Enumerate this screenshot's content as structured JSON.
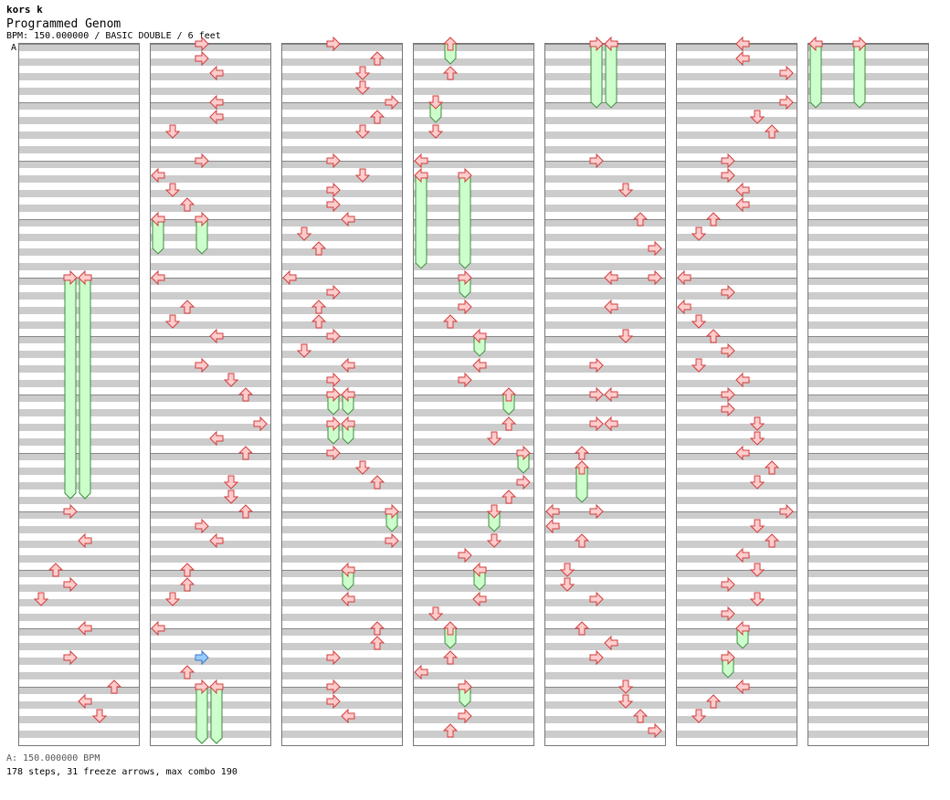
{
  "header": {
    "artist": "kors k",
    "song": "Programmed Genom",
    "meta": "BPM: 150.000000 / BASIC DOUBLE / 6 feet",
    "bpm_marker": "A"
  },
  "footer": {
    "bpm": "A: 150.000000 BPM",
    "stats": "178 steps, 31 freeze arrows, max combo 190"
  },
  "colors": {
    "grey_band": "#cccccc",
    "note_fill": "#ffcccc",
    "note_stroke": "#d23c3c",
    "freeze_fill": "#ccffcc",
    "freeze_stroke": "#3c8c3c",
    "shock_fill": "#99ccff",
    "shock_stroke": "#3c78c8",
    "bpm_line": "#3c8cdc"
  },
  "chart_data": {
    "type": "step-chart",
    "columns": 7,
    "measures_per_column": 12,
    "lanes": 8,
    "notes": [
      {
        "c": 0,
        "m": 4,
        "p": 0.0,
        "l": 3
      },
      {
        "c": 0,
        "m": 4,
        "p": 0.0,
        "l": 4
      },
      {
        "c": 0,
        "m": 8,
        "p": 0.0,
        "l": 3
      },
      {
        "c": 0,
        "m": 8,
        "p": 0.5,
        "l": 4
      },
      {
        "c": 0,
        "m": 9,
        "p": 0.0,
        "l": 2
      },
      {
        "c": 0,
        "m": 9,
        "p": 0.25,
        "l": 3
      },
      {
        "c": 0,
        "m": 9,
        "p": 0.5,
        "l": 1
      },
      {
        "c": 0,
        "m": 10,
        "p": 0.0,
        "l": 4
      },
      {
        "c": 0,
        "m": 10,
        "p": 0.5,
        "l": 3
      },
      {
        "c": 0,
        "m": 11,
        "p": 0.0,
        "l": 6
      },
      {
        "c": 0,
        "m": 11,
        "p": 0.25,
        "l": 4
      },
      {
        "c": 0,
        "m": 11,
        "p": 0.5,
        "l": 5
      },
      {
        "c": 1,
        "m": 0,
        "p": 0.0,
        "l": 3
      },
      {
        "c": 1,
        "m": 0,
        "p": 0.25,
        "l": 3
      },
      {
        "c": 1,
        "m": 0,
        "p": 0.5,
        "l": 4
      },
      {
        "c": 1,
        "m": 1,
        "p": 0.0,
        "l": 4
      },
      {
        "c": 1,
        "m": 1,
        "p": 0.25,
        "l": 4
      },
      {
        "c": 1,
        "m": 1,
        "p": 0.5,
        "l": 1
      },
      {
        "c": 1,
        "m": 2,
        "p": 0.0,
        "l": 3
      },
      {
        "c": 1,
        "m": 2,
        "p": 0.25,
        "l": 0
      },
      {
        "c": 1,
        "m": 2,
        "p": 0.5,
        "l": 1
      },
      {
        "c": 1,
        "m": 2,
        "p": 0.75,
        "l": 2
      },
      {
        "c": 1,
        "m": 3,
        "p": 0.0,
        "l": 0
      },
      {
        "c": 1,
        "m": 3,
        "p": 0.0,
        "l": 3
      },
      {
        "c": 1,
        "m": 4,
        "p": 0.0,
        "l": 0
      },
      {
        "c": 1,
        "m": 4,
        "p": 0.5,
        "l": 2
      },
      {
        "c": 1,
        "m": 4,
        "p": 0.75,
        "l": 1
      },
      {
        "c": 1,
        "m": 5,
        "p": 0.0,
        "l": 4
      },
      {
        "c": 1,
        "m": 5,
        "p": 0.5,
        "l": 3
      },
      {
        "c": 1,
        "m": 5,
        "p": 0.75,
        "l": 5
      },
      {
        "c": 1,
        "m": 6,
        "p": 0.0,
        "l": 6
      },
      {
        "c": 1,
        "m": 6,
        "p": 0.5,
        "l": 7
      },
      {
        "c": 1,
        "m": 6,
        "p": 0.75,
        "l": 4
      },
      {
        "c": 1,
        "m": 7,
        "p": 0.0,
        "l": 6
      },
      {
        "c": 1,
        "m": 7,
        "p": 0.5,
        "l": 5
      },
      {
        "c": 1,
        "m": 7,
        "p": 0.75,
        "l": 5
      },
      {
        "c": 1,
        "m": 8,
        "p": 0.0,
        "l": 6
      },
      {
        "c": 1,
        "m": 8,
        "p": 0.25,
        "l": 3
      },
      {
        "c": 1,
        "m": 8,
        "p": 0.5,
        "l": 4
      },
      {
        "c": 1,
        "m": 9,
        "p": 0.0,
        "l": 2
      },
      {
        "c": 1,
        "m": 9,
        "p": 0.25,
        "l": 2
      },
      {
        "c": 1,
        "m": 9,
        "p": 0.5,
        "l": 1
      },
      {
        "c": 1,
        "m": 10,
        "p": 0.0,
        "l": 0
      },
      {
        "c": 1,
        "m": 10,
        "p": 0.5,
        "l": 3,
        "shock": true
      },
      {
        "c": 1,
        "m": 10,
        "p": 0.75,
        "l": 2
      },
      {
        "c": 1,
        "m": 11,
        "p": 0.0,
        "l": 3
      },
      {
        "c": 1,
        "m": 11,
        "p": 0.0,
        "l": 4
      },
      {
        "c": 2,
        "m": 0,
        "p": 0.0,
        "l": 3
      },
      {
        "c": 2,
        "m": 0,
        "p": 0.25,
        "l": 6
      },
      {
        "c": 2,
        "m": 0,
        "p": 0.5,
        "l": 5
      },
      {
        "c": 2,
        "m": 0,
        "p": 0.75,
        "l": 5
      },
      {
        "c": 2,
        "m": 1,
        "p": 0.0,
        "l": 7
      },
      {
        "c": 2,
        "m": 1,
        "p": 0.25,
        "l": 6
      },
      {
        "c": 2,
        "m": 1,
        "p": 0.5,
        "l": 5
      },
      {
        "c": 2,
        "m": 2,
        "p": 0.0,
        "l": 3
      },
      {
        "c": 2,
        "m": 2,
        "p": 0.25,
        "l": 5
      },
      {
        "c": 2,
        "m": 2,
        "p": 0.5,
        "l": 3
      },
      {
        "c": 2,
        "m": 2,
        "p": 0.75,
        "l": 3
      },
      {
        "c": 2,
        "m": 3,
        "p": 0.0,
        "l": 4
      },
      {
        "c": 2,
        "m": 3,
        "p": 0.25,
        "l": 1
      },
      {
        "c": 2,
        "m": 3,
        "p": 0.5,
        "l": 2
      },
      {
        "c": 2,
        "m": 4,
        "p": 0.0,
        "l": 0
      },
      {
        "c": 2,
        "m": 4,
        "p": 0.25,
        "l": 3
      },
      {
        "c": 2,
        "m": 4,
        "p": 0.5,
        "l": 2
      },
      {
        "c": 2,
        "m": 4,
        "p": 0.75,
        "l": 2
      },
      {
        "c": 2,
        "m": 5,
        "p": 0.0,
        "l": 3
      },
      {
        "c": 2,
        "m": 5,
        "p": 0.25,
        "l": 1
      },
      {
        "c": 2,
        "m": 5,
        "p": 0.5,
        "l": 4
      },
      {
        "c": 2,
        "m": 5,
        "p": 0.75,
        "l": 3
      },
      {
        "c": 2,
        "m": 6,
        "p": 0.0,
        "l": 3
      },
      {
        "c": 2,
        "m": 6,
        "p": 0.0,
        "l": 4
      },
      {
        "c": 2,
        "m": 6,
        "p": 0.5,
        "l": 3
      },
      {
        "c": 2,
        "m": 6,
        "p": 0.5,
        "l": 4
      },
      {
        "c": 2,
        "m": 7,
        "p": 0.0,
        "l": 3
      },
      {
        "c": 2,
        "m": 7,
        "p": 0.25,
        "l": 5
      },
      {
        "c": 2,
        "m": 7,
        "p": 0.5,
        "l": 6
      },
      {
        "c": 2,
        "m": 8,
        "p": 0.0,
        "l": 7
      },
      {
        "c": 2,
        "m": 8,
        "p": 0.5,
        "l": 7
      },
      {
        "c": 2,
        "m": 9,
        "p": 0.0,
        "l": 4
      },
      {
        "c": 2,
        "m": 9,
        "p": 0.5,
        "l": 4
      },
      {
        "c": 2,
        "m": 10,
        "p": 0.0,
        "l": 6
      },
      {
        "c": 2,
        "m": 10,
        "p": 0.25,
        "l": 6
      },
      {
        "c": 2,
        "m": 10,
        "p": 0.5,
        "l": 3
      },
      {
        "c": 2,
        "m": 11,
        "p": 0.0,
        "l": 3
      },
      {
        "c": 2,
        "m": 11,
        "p": 0.25,
        "l": 3
      },
      {
        "c": 2,
        "m": 11,
        "p": 0.5,
        "l": 4
      },
      {
        "c": 3,
        "m": 0,
        "p": 0.0,
        "l": 2
      },
      {
        "c": 3,
        "m": 0,
        "p": 0.5,
        "l": 2
      },
      {
        "c": 3,
        "m": 1,
        "p": 0.0,
        "l": 1
      },
      {
        "c": 3,
        "m": 1,
        "p": 0.5,
        "l": 1
      },
      {
        "c": 3,
        "m": 2,
        "p": 0.0,
        "l": 0
      },
      {
        "c": 3,
        "m": 2,
        "p": 0.25,
        "l": 0
      },
      {
        "c": 3,
        "m": 2,
        "p": 0.25,
        "l": 3
      },
      {
        "c": 3,
        "m": 4,
        "p": 0.0,
        "l": 3
      },
      {
        "c": 3,
        "m": 4,
        "p": 0.5,
        "l": 3
      },
      {
        "c": 3,
        "m": 4,
        "p": 0.75,
        "l": 2
      },
      {
        "c": 3,
        "m": 5,
        "p": 0.0,
        "l": 4
      },
      {
        "c": 3,
        "m": 5,
        "p": 0.5,
        "l": 4
      },
      {
        "c": 3,
        "m": 5,
        "p": 0.75,
        "l": 3
      },
      {
        "c": 3,
        "m": 6,
        "p": 0.0,
        "l": 6
      },
      {
        "c": 3,
        "m": 6,
        "p": 0.5,
        "l": 6
      },
      {
        "c": 3,
        "m": 6,
        "p": 0.75,
        "l": 5
      },
      {
        "c": 3,
        "m": 7,
        "p": 0.0,
        "l": 7
      },
      {
        "c": 3,
        "m": 7,
        "p": 0.5,
        "l": 7
      },
      {
        "c": 3,
        "m": 7,
        "p": 0.75,
        "l": 6
      },
      {
        "c": 3,
        "m": 8,
        "p": 0.0,
        "l": 5
      },
      {
        "c": 3,
        "m": 8,
        "p": 0.5,
        "l": 5
      },
      {
        "c": 3,
        "m": 8,
        "p": 0.75,
        "l": 3
      },
      {
        "c": 3,
        "m": 9,
        "p": 0.0,
        "l": 4
      },
      {
        "c": 3,
        "m": 9,
        "p": 0.5,
        "l": 4
      },
      {
        "c": 3,
        "m": 9,
        "p": 0.75,
        "l": 1
      },
      {
        "c": 3,
        "m": 10,
        "p": 0.0,
        "l": 2
      },
      {
        "c": 3,
        "m": 10,
        "p": 0.5,
        "l": 2
      },
      {
        "c": 3,
        "m": 10,
        "p": 0.75,
        "l": 0
      },
      {
        "c": 3,
        "m": 11,
        "p": 0.0,
        "l": 3
      },
      {
        "c": 3,
        "m": 11,
        "p": 0.5,
        "l": 3
      },
      {
        "c": 3,
        "m": 11,
        "p": 0.75,
        "l": 2
      },
      {
        "c": 4,
        "m": 0,
        "p": 0.0,
        "l": 3
      },
      {
        "c": 4,
        "m": 0,
        "p": 0.0,
        "l": 4
      },
      {
        "c": 4,
        "m": 2,
        "p": 0.0,
        "l": 3
      },
      {
        "c": 4,
        "m": 2,
        "p": 0.5,
        "l": 5
      },
      {
        "c": 4,
        "m": 3,
        "p": 0.0,
        "l": 6
      },
      {
        "c": 4,
        "m": 3,
        "p": 0.5,
        "l": 7
      },
      {
        "c": 4,
        "m": 4,
        "p": 0.0,
        "l": 4
      },
      {
        "c": 4,
        "m": 4,
        "p": 0.0,
        "l": 7
      },
      {
        "c": 4,
        "m": 4,
        "p": 0.5,
        "l": 4
      },
      {
        "c": 4,
        "m": 5,
        "p": 0.0,
        "l": 5
      },
      {
        "c": 4,
        "m": 5,
        "p": 0.5,
        "l": 3
      },
      {
        "c": 4,
        "m": 6,
        "p": 0.0,
        "l": 3
      },
      {
        "c": 4,
        "m": 6,
        "p": 0.0,
        "l": 4
      },
      {
        "c": 4,
        "m": 6,
        "p": 0.5,
        "l": 3
      },
      {
        "c": 4,
        "m": 6,
        "p": 0.5,
        "l": 4
      },
      {
        "c": 4,
        "m": 7,
        "p": 0.0,
        "l": 2
      },
      {
        "c": 4,
        "m": 7,
        "p": 0.25,
        "l": 2
      },
      {
        "c": 4,
        "m": 8,
        "p": 0.0,
        "l": 0
      },
      {
        "c": 4,
        "m": 8,
        "p": 0.0,
        "l": 3
      },
      {
        "c": 4,
        "m": 8,
        "p": 0.25,
        "l": 0
      },
      {
        "c": 4,
        "m": 8,
        "p": 0.5,
        "l": 2
      },
      {
        "c": 4,
        "m": 9,
        "p": 0.0,
        "l": 1
      },
      {
        "c": 4,
        "m": 9,
        "p": 0.25,
        "l": 1
      },
      {
        "c": 4,
        "m": 9,
        "p": 0.5,
        "l": 3
      },
      {
        "c": 4,
        "m": 10,
        "p": 0.0,
        "l": 2
      },
      {
        "c": 4,
        "m": 10,
        "p": 0.25,
        "l": 4
      },
      {
        "c": 4,
        "m": 10,
        "p": 0.5,
        "l": 3
      },
      {
        "c": 4,
        "m": 11,
        "p": 0.0,
        "l": 5
      },
      {
        "c": 4,
        "m": 11,
        "p": 0.25,
        "l": 5
      },
      {
        "c": 4,
        "m": 11,
        "p": 0.5,
        "l": 6
      },
      {
        "c": 4,
        "m": 11,
        "p": 0.75,
        "l": 7
      },
      {
        "c": 5,
        "m": 0,
        "p": 0.0,
        "l": 4
      },
      {
        "c": 5,
        "m": 0,
        "p": 0.25,
        "l": 4
      },
      {
        "c": 5,
        "m": 0,
        "p": 0.5,
        "l": 7
      },
      {
        "c": 5,
        "m": 1,
        "p": 0.0,
        "l": 7
      },
      {
        "c": 5,
        "m": 1,
        "p": 0.25,
        "l": 5
      },
      {
        "c": 5,
        "m": 1,
        "p": 0.5,
        "l": 6
      },
      {
        "c": 5,
        "m": 2,
        "p": 0.0,
        "l": 3
      },
      {
        "c": 5,
        "m": 2,
        "p": 0.25,
        "l": 3
      },
      {
        "c": 5,
        "m": 2,
        "p": 0.5,
        "l": 4
      },
      {
        "c": 5,
        "m": 2,
        "p": 0.75,
        "l": 4
      },
      {
        "c": 5,
        "m": 3,
        "p": 0.0,
        "l": 2
      },
      {
        "c": 5,
        "m": 3,
        "p": 0.25,
        "l": 1
      },
      {
        "c": 5,
        "m": 4,
        "p": 0.0,
        "l": 0
      },
      {
        "c": 5,
        "m": 4,
        "p": 0.25,
        "l": 3
      },
      {
        "c": 5,
        "m": 4,
        "p": 0.5,
        "l": 0
      },
      {
        "c": 5,
        "m": 4,
        "p": 0.75,
        "l": 1
      },
      {
        "c": 5,
        "m": 5,
        "p": 0.0,
        "l": 2
      },
      {
        "c": 5,
        "m": 5,
        "p": 0.25,
        "l": 3
      },
      {
        "c": 5,
        "m": 5,
        "p": 0.5,
        "l": 1
      },
      {
        "c": 5,
        "m": 5,
        "p": 0.75,
        "l": 4
      },
      {
        "c": 5,
        "m": 6,
        "p": 0.0,
        "l": 3
      },
      {
        "c": 5,
        "m": 6,
        "p": 0.25,
        "l": 3
      },
      {
        "c": 5,
        "m": 6,
        "p": 0.5,
        "l": 5
      },
      {
        "c": 5,
        "m": 6,
        "p": 0.75,
        "l": 5
      },
      {
        "c": 5,
        "m": 7,
        "p": 0.0,
        "l": 4
      },
      {
        "c": 5,
        "m": 7,
        "p": 0.25,
        "l": 6
      },
      {
        "c": 5,
        "m": 7,
        "p": 0.5,
        "l": 5
      },
      {
        "c": 5,
        "m": 8,
        "p": 0.0,
        "l": 7
      },
      {
        "c": 5,
        "m": 8,
        "p": 0.25,
        "l": 5
      },
      {
        "c": 5,
        "m": 8,
        "p": 0.5,
        "l": 6
      },
      {
        "c": 5,
        "m": 8,
        "p": 0.75,
        "l": 4
      },
      {
        "c": 5,
        "m": 9,
        "p": 0.0,
        "l": 5
      },
      {
        "c": 5,
        "m": 9,
        "p": 0.25,
        "l": 3
      },
      {
        "c": 5,
        "m": 9,
        "p": 0.5,
        "l": 5
      },
      {
        "c": 5,
        "m": 9,
        "p": 0.75,
        "l": 3
      },
      {
        "c": 5,
        "m": 10,
        "p": 0.0,
        "l": 4
      },
      {
        "c": 5,
        "m": 10,
        "p": 0.5,
        "l": 3
      },
      {
        "c": 5,
        "m": 11,
        "p": 0.0,
        "l": 4
      },
      {
        "c": 5,
        "m": 11,
        "p": 0.25,
        "l": 2
      },
      {
        "c": 5,
        "m": 11,
        "p": 0.5,
        "l": 1
      },
      {
        "c": 6,
        "m": 0,
        "p": 0.0,
        "l": 0
      },
      {
        "c": 6,
        "m": 0,
        "p": 0.0,
        "l": 3
      }
    ],
    "freezes": [
      {
        "c": 0,
        "m": 4,
        "p": 0.0,
        "l": 3,
        "len": 3.75
      },
      {
        "c": 0,
        "m": 4,
        "p": 0.0,
        "l": 4,
        "len": 3.75
      },
      {
        "c": 1,
        "m": 3,
        "p": 0.0,
        "l": 0,
        "len": 0.56
      },
      {
        "c": 1,
        "m": 3,
        "p": 0.0,
        "l": 3,
        "len": 0.56
      },
      {
        "c": 1,
        "m": 11,
        "p": 0.0,
        "l": 3,
        "len": 0.94
      },
      {
        "c": 1,
        "m": 11,
        "p": 0.0,
        "l": 4,
        "len": 0.94
      },
      {
        "c": 2,
        "m": 6,
        "p": 0.0,
        "l": 3,
        "len": 0.31
      },
      {
        "c": 2,
        "m": 6,
        "p": 0.0,
        "l": 4,
        "len": 0.31
      },
      {
        "c": 2,
        "m": 6,
        "p": 0.5,
        "l": 3,
        "len": 0.31
      },
      {
        "c": 2,
        "m": 6,
        "p": 0.5,
        "l": 4,
        "len": 0.31
      },
      {
        "c": 2,
        "m": 8,
        "p": 0.0,
        "l": 7,
        "len": 0.31
      },
      {
        "c": 2,
        "m": 9,
        "p": 0.0,
        "l": 4,
        "len": 0.31
      },
      {
        "c": 3,
        "m": 0,
        "p": 0.0,
        "l": 2,
        "len": 0.31
      },
      {
        "c": 3,
        "m": 1,
        "p": 0.0,
        "l": 1,
        "len": 0.31
      },
      {
        "c": 3,
        "m": 2,
        "p": 0.25,
        "l": 0,
        "len": 1.56
      },
      {
        "c": 3,
        "m": 2,
        "p": 0.25,
        "l": 3,
        "len": 1.56
      },
      {
        "c": 3,
        "m": 4,
        "p": 0.0,
        "l": 3,
        "len": 0.31
      },
      {
        "c": 3,
        "m": 5,
        "p": 0.0,
        "l": 4,
        "len": 0.31
      },
      {
        "c": 3,
        "m": 6,
        "p": 0.0,
        "l": 6,
        "len": 0.31
      },
      {
        "c": 3,
        "m": 7,
        "p": 0.0,
        "l": 7,
        "len": 0.31
      },
      {
        "c": 3,
        "m": 8,
        "p": 0.0,
        "l": 5,
        "len": 0.31
      },
      {
        "c": 3,
        "m": 9,
        "p": 0.0,
        "l": 4,
        "len": 0.31
      },
      {
        "c": 3,
        "m": 10,
        "p": 0.0,
        "l": 2,
        "len": 0.31
      },
      {
        "c": 3,
        "m": 11,
        "p": 0.0,
        "l": 3,
        "len": 0.31
      },
      {
        "c": 4,
        "m": 0,
        "p": 0.0,
        "l": 3,
        "len": 1.06
      },
      {
        "c": 4,
        "m": 0,
        "p": 0.0,
        "l": 4,
        "len": 1.06
      },
      {
        "c": 4,
        "m": 7,
        "p": 0.25,
        "l": 2,
        "len": 0.56
      },
      {
        "c": 5,
        "m": 10,
        "p": 0.0,
        "l": 4,
        "len": 0.31
      },
      {
        "c": 5,
        "m": 10,
        "p": 0.5,
        "l": 3,
        "len": 0.31
      },
      {
        "c": 6,
        "m": 0,
        "p": 0.0,
        "l": 0,
        "len": 1.06
      },
      {
        "c": 6,
        "m": 0,
        "p": 0.0,
        "l": 3,
        "len": 1.06
      }
    ]
  }
}
